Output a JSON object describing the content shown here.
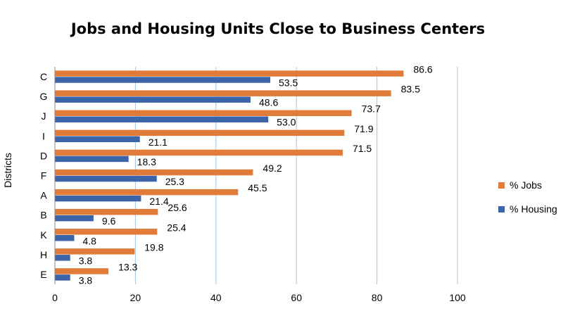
{
  "chart_data": {
    "type": "bar",
    "orientation": "horizontal",
    "title": "Jobs and Housing Units Close to Business Centers",
    "xlabel": "",
    "ylabel": "Districts",
    "xlim": [
      0,
      100
    ],
    "xticks": [
      "0",
      "20",
      "40",
      "60",
      "80",
      "100"
    ],
    "grid": true,
    "legend_position": "right",
    "categories": [
      "C",
      "G",
      "J",
      "I",
      "D",
      "F",
      "A",
      "B",
      "K",
      "H",
      "E"
    ],
    "series": [
      {
        "name": "% Jobs",
        "color": "#e07b39",
        "values": [
          86.6,
          83.5,
          73.7,
          71.9,
          71.5,
          49.2,
          45.5,
          25.6,
          25.4,
          19.8,
          13.3
        ],
        "labels": [
          "86.6",
          "83.5",
          "73.7",
          "71.9",
          "71.5",
          "49.2",
          "45.5",
          "25.6",
          "25.4",
          "19.8",
          "13.3"
        ]
      },
      {
        "name": "% Housing",
        "color": "#3c64a8",
        "values": [
          53.5,
          48.6,
          53.0,
          21.1,
          18.3,
          25.3,
          21.4,
          9.6,
          4.8,
          3.8,
          3.8
        ],
        "labels": [
          "53.5",
          "48.6",
          "53.0",
          "21.1",
          "18.3",
          "25.3",
          "21.4",
          "9.6",
          "4.8",
          "3.8",
          "3.8"
        ]
      }
    ]
  }
}
